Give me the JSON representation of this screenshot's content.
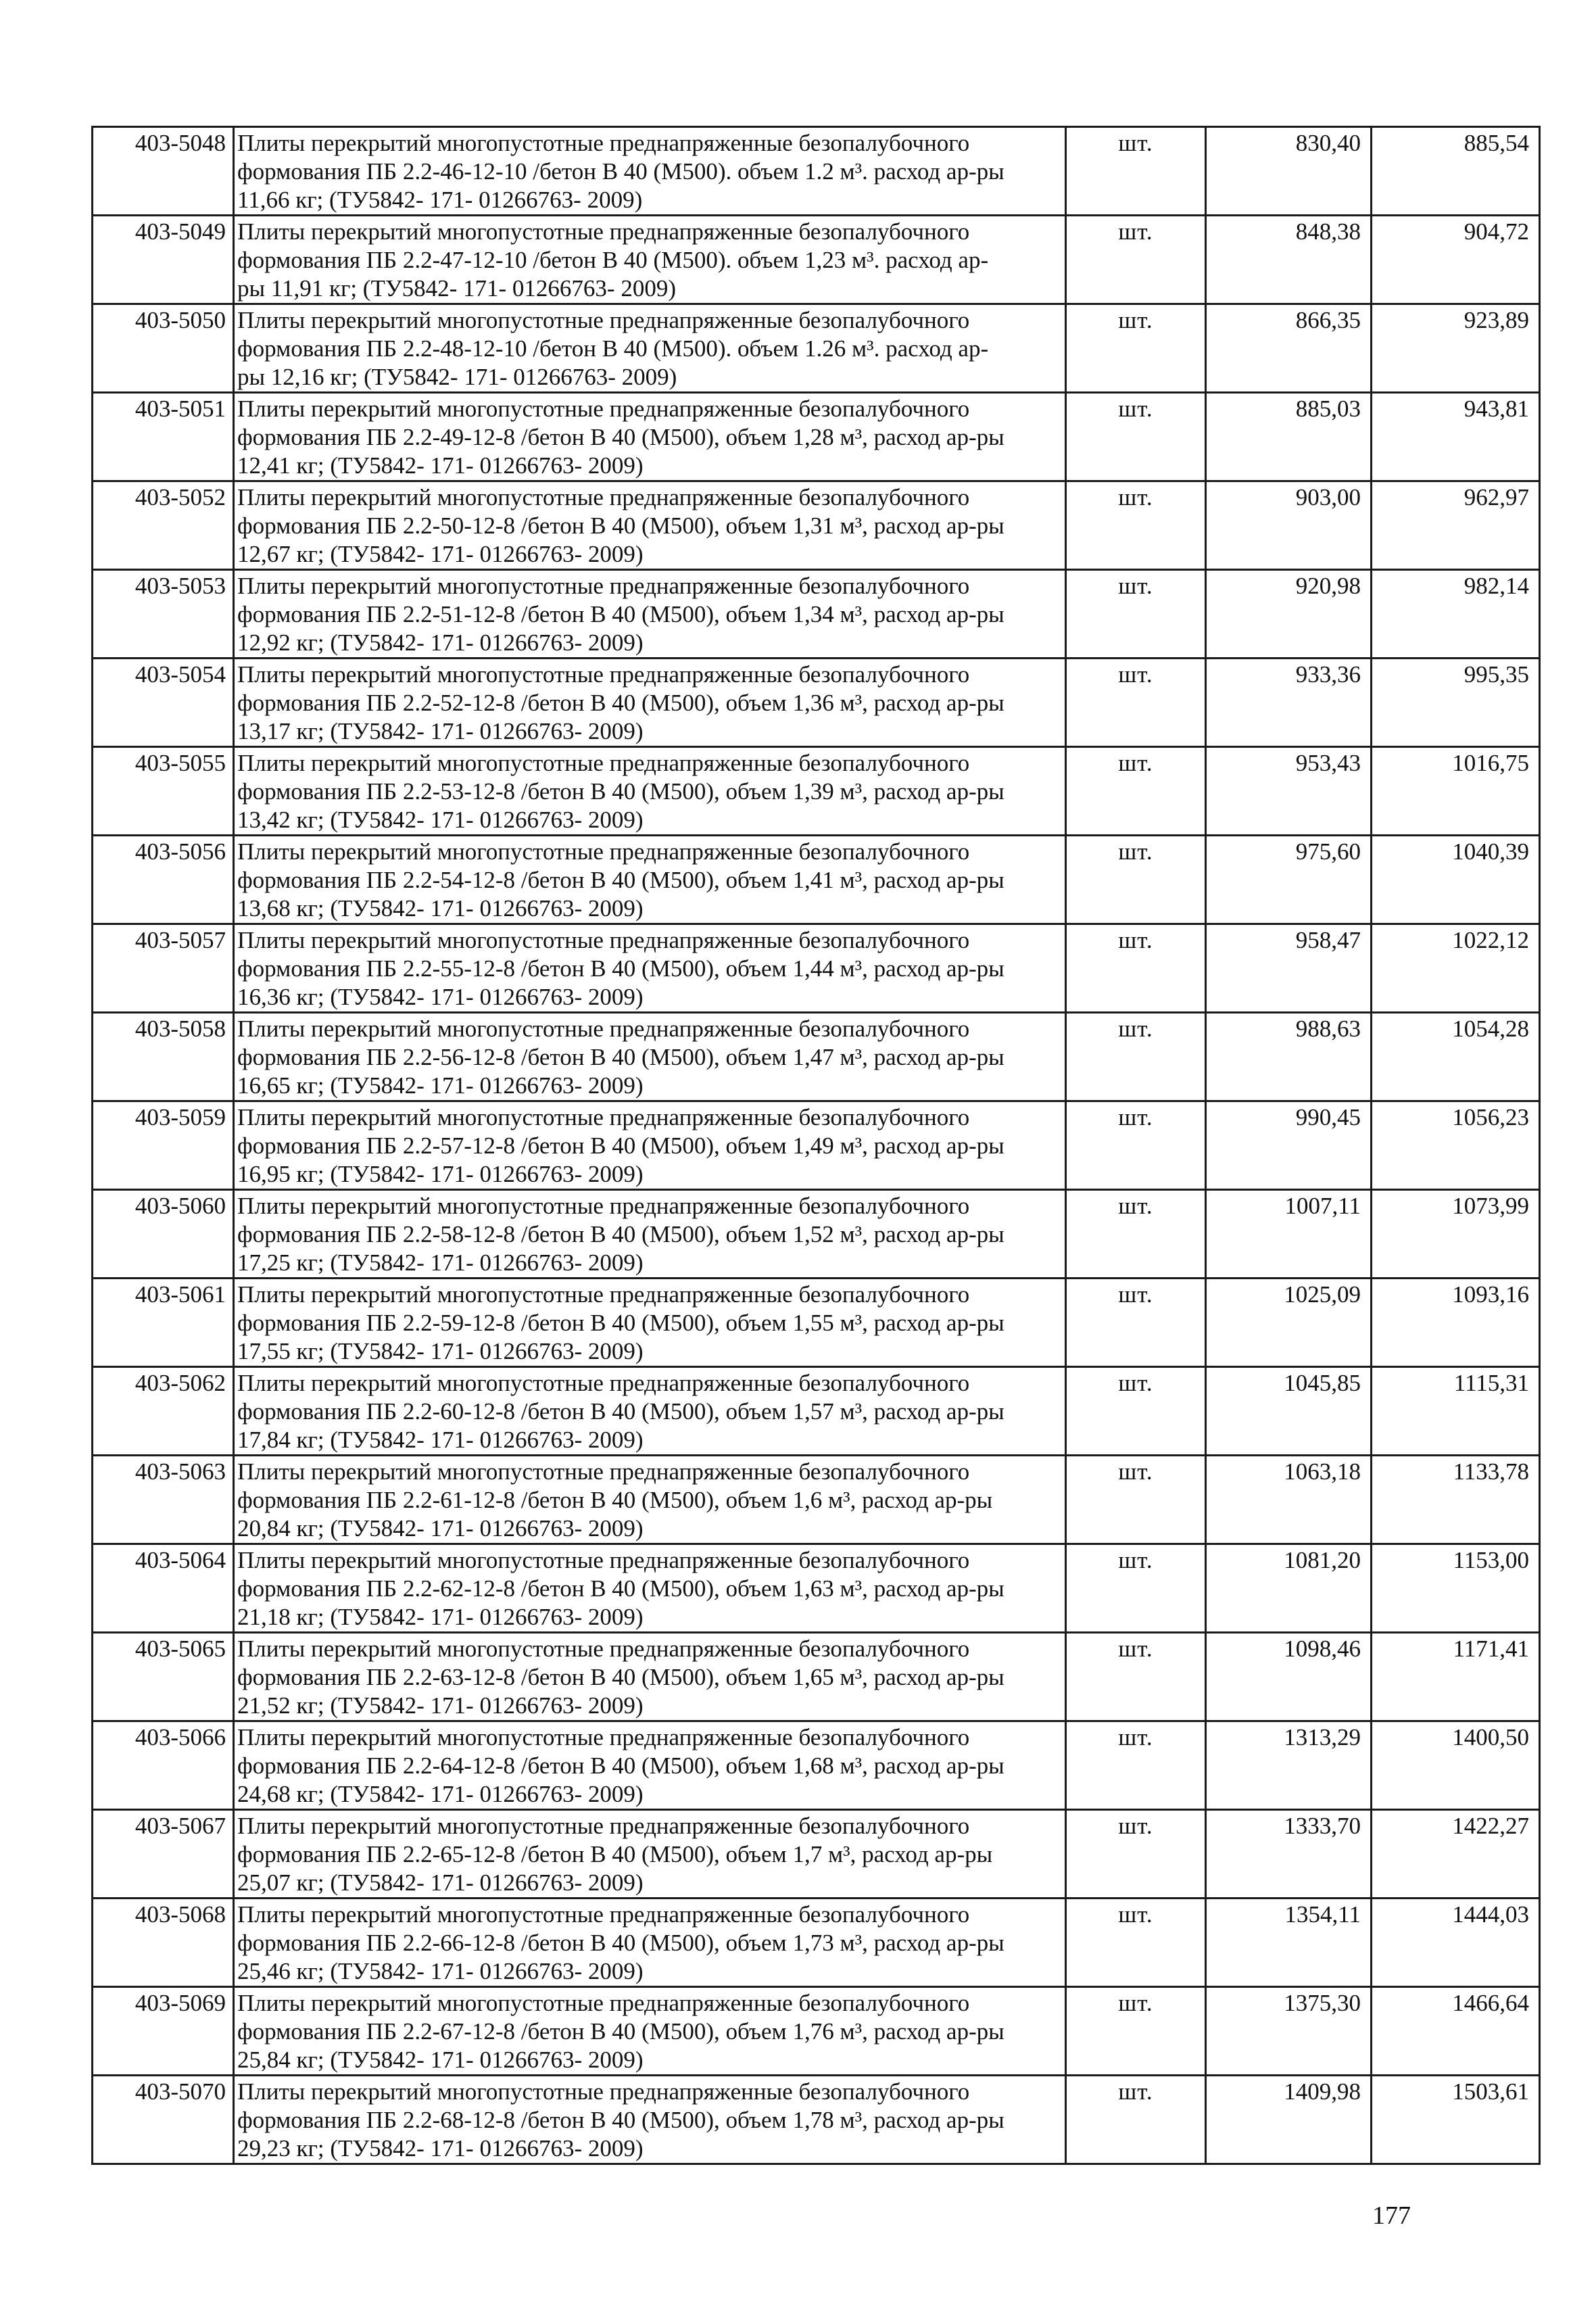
{
  "page_number": "177",
  "rows": [
    {
      "code": "403-5048",
      "lines": [
        "Плиты перекрытий многопустотные преднапряженные безопалубочного",
        "формования ПБ 2.2-46-12-10 /бетон В 40 (М500). объем 1.2 м³. расход ар-ры",
        "11,66 кг; (ТУ5842- 171- 01266763- 2009)"
      ],
      "unit": "шт.",
      "price1": "830,40",
      "price2": "885,54"
    },
    {
      "code": "403-5049",
      "lines": [
        "Плиты перекрытий многопустотные преднапряженные безопалубочного",
        "формования ПБ 2.2-47-12-10 /бетон В 40 (М500). объем 1,23 м³. расход ар-",
        "ры 11,91 кг; (ТУ5842- 171- 01266763- 2009)"
      ],
      "unit": "шт.",
      "price1": "848,38",
      "price2": "904,72"
    },
    {
      "code": "403-5050",
      "lines": [
        "Плиты перекрытий многопустотные преднапряженные безопалубочного",
        "формования ПБ 2.2-48-12-10 /бетон В 40 (М500). объем 1.26 м³. расход ар-",
        "ры 12,16 кг; (ТУ5842- 171- 01266763- 2009)"
      ],
      "unit": "шт.",
      "price1": "866,35",
      "price2": "923,89"
    },
    {
      "code": "403-5051",
      "lines": [
        "Плиты перекрытий многопустотные преднапряженные безопалубочного",
        "формования ПБ 2.2-49-12-8 /бетон В 40 (М500), объем 1,28 м³, расход ар-ры",
        "12,41 кг; (ТУ5842- 171- 01266763- 2009)"
      ],
      "unit": "шт.",
      "price1": "885,03",
      "price2": "943,81"
    },
    {
      "code": "403-5052",
      "lines": [
        "Плиты перекрытий многопустотные преднапряженные безопалубочного",
        "формования ПБ 2.2-50-12-8 /бетон В 40 (М500), объем 1,31 м³, расход ар-ры",
        "12,67 кг; (ТУ5842- 171- 01266763- 2009)"
      ],
      "unit": "шт.",
      "price1": "903,00",
      "price2": "962,97"
    },
    {
      "code": "403-5053",
      "lines": [
        "Плиты перекрытий многопустотные преднапряженные безопалубочного",
        "формования ПБ 2.2-51-12-8 /бетон В 40 (М500), объем 1,34 м³, расход ар-ры",
        "12,92 кг; (ТУ5842- 171- 01266763- 2009)"
      ],
      "unit": "шт.",
      "price1": "920,98",
      "price2": "982,14"
    },
    {
      "code": "403-5054",
      "lines": [
        "Плиты перекрытий многопустотные преднапряженные безопалубочного",
        "формования ПБ 2.2-52-12-8 /бетон В 40 (М500), объем 1,36 м³, расход ар-ры",
        "13,17 кг; (ТУ5842- 171- 01266763- 2009)"
      ],
      "unit": "шт.",
      "price1": "933,36",
      "price2": "995,35"
    },
    {
      "code": "403-5055",
      "lines": [
        "Плиты перекрытий многопустотные преднапряженные безопалубочного",
        "формования ПБ 2.2-53-12-8 /бетон В 40 (М500), объем 1,39 м³, расход ар-ры",
        "13,42 кг; (ТУ5842- 171- 01266763- 2009)"
      ],
      "unit": "шт.",
      "price1": "953,43",
      "price2": "1016,75"
    },
    {
      "code": "403-5056",
      "lines": [
        "Плиты перекрытий многопустотные преднапряженные безопалубочного",
        "формования ПБ 2.2-54-12-8 /бетон В 40 (М500), объем 1,41 м³, расход ар-ры",
        "13,68 кг; (ТУ5842- 171- 01266763- 2009)"
      ],
      "unit": "шт.",
      "price1": "975,60",
      "price2": "1040,39"
    },
    {
      "code": "403-5057",
      "lines": [
        "Плиты перекрытий многопустотные преднапряженные безопалубочного",
        "формования ПБ 2.2-55-12-8 /бетон В 40 (М500), объем 1,44 м³, расход ар-ры",
        "16,36 кг; (ТУ5842- 171- 01266763- 2009)"
      ],
      "unit": "шт.",
      "price1": "958,47",
      "price2": "1022,12"
    },
    {
      "code": "403-5058",
      "lines": [
        "Плиты перекрытий многопустотные преднапряженные безопалубочного",
        "формования ПБ 2.2-56-12-8 /бетон В 40 (М500), объем 1,47 м³, расход ар-ры",
        "16,65 кг; (ТУ5842- 171- 01266763- 2009)"
      ],
      "unit": "шт.",
      "price1": "988,63",
      "price2": "1054,28"
    },
    {
      "code": "403-5059",
      "lines": [
        "Плиты перекрытий многопустотные преднапряженные безопалубочного",
        "формования ПБ 2.2-57-12-8 /бетон В 40 (М500), объем 1,49 м³, расход ар-ры",
        "16,95 кг; (ТУ5842- 171- 01266763- 2009)"
      ],
      "unit": "шт.",
      "price1": "990,45",
      "price2": "1056,23"
    },
    {
      "code": "403-5060",
      "lines": [
        "Плиты перекрытий многопустотные преднапряженные безопалубочного",
        "формования ПБ 2.2-58-12-8 /бетон В 40 (М500), объем 1,52 м³, расход ар-ры",
        "17,25 кг; (ТУ5842- 171- 01266763- 2009)"
      ],
      "unit": "шт.",
      "price1": "1007,11",
      "price2": "1073,99"
    },
    {
      "code": "403-5061",
      "lines": [
        "Плиты перекрытий многопустотные преднапряженные безопалубочного",
        "формования ПБ 2.2-59-12-8 /бетон В 40 (М500), объем 1,55 м³, расход ар-ры",
        "17,55 кг; (ТУ5842- 171- 01266763- 2009)"
      ],
      "unit": "шт.",
      "price1": "1025,09",
      "price2": "1093,16"
    },
    {
      "code": "403-5062",
      "lines": [
        "Плиты перекрытий многопустотные преднапряженные безопалубочного",
        "формования ПБ 2.2-60-12-8 /бетон В 40 (М500), объем 1,57 м³, расход ар-ры",
        "17,84 кг; (ТУ5842- 171- 01266763- 2009)"
      ],
      "unit": "шт.",
      "price1": "1045,85",
      "price2": "1115,31"
    },
    {
      "code": "403-5063",
      "lines": [
        "Плиты перекрытий многопустотные преднапряженные безопалубочного",
        "формования ПБ 2.2-61-12-8 /бетон В 40 (М500), объем 1,6 м³, расход ар-ры",
        "20,84 кг; (ТУ5842- 171- 01266763- 2009)"
      ],
      "unit": "шт.",
      "price1": "1063,18",
      "price2": "1133,78"
    },
    {
      "code": "403-5064",
      "lines": [
        "Плиты перекрытий многопустотные преднапряженные безопалубочного",
        "формования ПБ 2.2-62-12-8 /бетон В 40 (М500), объем 1,63 м³, расход ар-ры",
        "21,18 кг; (ТУ5842- 171- 01266763- 2009)"
      ],
      "unit": "шт.",
      "price1": "1081,20",
      "price2": "1153,00"
    },
    {
      "code": "403-5065",
      "lines": [
        "Плиты перекрытий многопустотные преднапряженные безопалубочного",
        "формования ПБ 2.2-63-12-8 /бетон В 40 (М500), объем 1,65 м³, расход ар-ры",
        "21,52 кг; (ТУ5842- 171- 01266763- 2009)"
      ],
      "unit": "шт.",
      "price1": "1098,46",
      "price2": "1171,41"
    },
    {
      "code": "403-5066",
      "lines": [
        "Плиты перекрытий многопустотные преднапряженные безопалубочного",
        "формования ПБ 2.2-64-12-8 /бетон В 40 (М500), объем 1,68 м³, расход ар-ры",
        "24,68 кг; (ТУ5842- 171- 01266763- 2009)"
      ],
      "unit": "шт.",
      "price1": "1313,29",
      "price2": "1400,50"
    },
    {
      "code": "403-5067",
      "lines": [
        "Плиты перекрытий многопустотные преднапряженные безопалубочного",
        "формования ПБ 2.2-65-12-8 /бетон В 40 (М500), объем 1,7 м³, расход ар-ры",
        "25,07 кг; (ТУ5842- 171- 01266763- 2009)"
      ],
      "unit": "шт.",
      "price1": "1333,70",
      "price2": "1422,27"
    },
    {
      "code": "403-5068",
      "lines": [
        "Плиты перекрытий многопустотные преднапряженные безопалубочного",
        "формования ПБ 2.2-66-12-8 /бетон В 40 (М500), объем 1,73 м³, расход ар-ры",
        "25,46 кг; (ТУ5842- 171- 01266763- 2009)"
      ],
      "unit": "шт.",
      "price1": "1354,11",
      "price2": "1444,03"
    },
    {
      "code": "403-5069",
      "lines": [
        "Плиты перекрытий многопустотные преднапряженные безопалубочного",
        "формования ПБ 2.2-67-12-8 /бетон В 40 (М500), объем 1,76 м³, расход ар-ры",
        "25,84 кг; (ТУ5842- 171- 01266763- 2009)"
      ],
      "unit": "шт.",
      "price1": "1375,30",
      "price2": "1466,64"
    },
    {
      "code": "403-5070",
      "lines": [
        "Плиты перекрытий многопустотные преднапряженные безопалубочного",
        "формования ПБ 2.2-68-12-8 /бетон В 40 (М500), объем 1,78 м³, расход ар-ры",
        "29,23 кг; (ТУ5842- 171- 01266763- 2009)"
      ],
      "unit": "шт.",
      "price1": "1409,98",
      "price2": "1503,61"
    }
  ]
}
